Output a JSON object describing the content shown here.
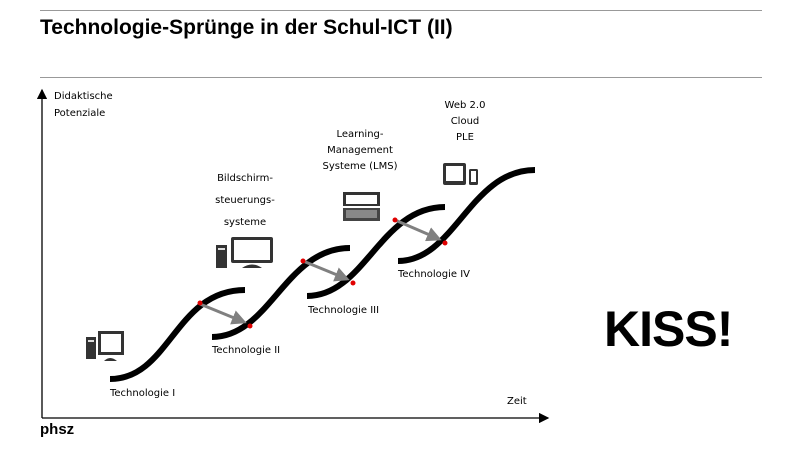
{
  "title": "Technologie-Sprünge  in der Schul-ICT (II)",
  "axes": {
    "y_label_line1": "Didaktische",
    "y_label_line2": "Potenziale",
    "x_label": "Zeit"
  },
  "technologies": [
    {
      "label": "Technologie  I",
      "icon": "desktop-computer-icon",
      "desc": []
    },
    {
      "label": "Technologie  II",
      "icon": "monitor-icon",
      "desc": [
        "Bildschirm-",
        "steuerungs-",
        "systeme"
      ]
    },
    {
      "label": "Technologie  III",
      "icon": "laptop-icon",
      "desc": [
        "Learning-",
        "Management",
        "Systeme (LMS)"
      ]
    },
    {
      "label": "Technologie  IV",
      "icon": "tablet-phone-icon",
      "desc": [
        "Web 2.0",
        "Cloud",
        "PLE"
      ]
    }
  ],
  "slogan": "KISS!",
  "logo": "phsz",
  "colors": {
    "curve": "#000000",
    "transition_dot": "#e00000",
    "arrow": "#808080"
  }
}
